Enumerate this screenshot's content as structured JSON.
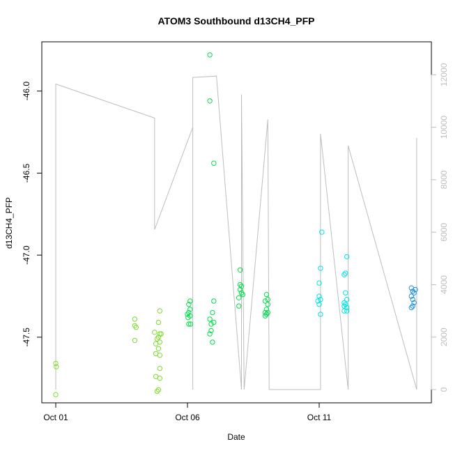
{
  "chart_data": {
    "type": "scatter",
    "title": "ATOM3 Southbound d13CH4_PFP",
    "xlabel": "Date",
    "ylabel": "d13CH4_PFP",
    "xlim": [
      0.0,
      16.0
    ],
    "ylim": [
      -47.9,
      -45.7
    ],
    "x_ticks": [
      {
        "value": 0,
        "label": "Oct 01"
      },
      {
        "value": 5,
        "label": "Oct 06"
      },
      {
        "value": 10,
        "label": "Oct 11"
      }
    ],
    "y_ticks": [
      -47.5,
      -47.0,
      -46.5,
      -46.0
    ],
    "y2_ticks": [
      0,
      2000,
      4000,
      6000,
      8000,
      10000,
      12000
    ],
    "y2_range": [
      -300,
      12500
    ],
    "grid": false,
    "colors": {
      "points_early": "#7fdc2e",
      "points_mid": "#00e04a",
      "points_late": "#00e5e5",
      "points_end": "#1f8fe0",
      "altitude_line": "#bdbdbd"
    },
    "series": [
      {
        "values": [
          {
            "x": 0.0,
            "y": -47.66
          },
          {
            "x": 0.02,
            "y": -47.68
          },
          {
            "x": 0.0,
            "y": -47.85
          },
          {
            "x": 3.0,
            "y": -47.39
          },
          {
            "x": 3.0,
            "y": -47.43
          },
          {
            "x": 3.05,
            "y": -47.44
          },
          {
            "x": 3.0,
            "y": -47.52
          },
          {
            "x": 3.75,
            "y": -47.47
          },
          {
            "x": 3.8,
            "y": -47.54
          },
          {
            "x": 3.85,
            "y": -47.51
          },
          {
            "x": 3.9,
            "y": -47.5
          },
          {
            "x": 3.95,
            "y": -47.48
          },
          {
            "x": 4.0,
            "y": -47.48
          },
          {
            "x": 3.8,
            "y": -47.6
          },
          {
            "x": 3.9,
            "y": -47.57
          },
          {
            "x": 3.95,
            "y": -47.61
          },
          {
            "x": 3.95,
            "y": -47.69
          },
          {
            "x": 3.8,
            "y": -47.74
          },
          {
            "x": 3.95,
            "y": -47.75
          },
          {
            "x": 3.9,
            "y": -47.82
          },
          {
            "x": 3.85,
            "y": -47.83
          },
          {
            "x": 3.95,
            "y": -47.34
          },
          {
            "x": 3.9,
            "y": -47.41
          },
          {
            "x": 3.95,
            "y": -47.53
          }
        ]
      },
      {
        "values": [
          {
            "x": 5.05,
            "y": -47.3
          },
          {
            "x": 5.1,
            "y": -47.33
          },
          {
            "x": 5.05,
            "y": -47.35
          },
          {
            "x": 5.0,
            "y": -47.36
          },
          {
            "x": 5.1,
            "y": -47.37
          },
          {
            "x": 5.05,
            "y": -47.42
          },
          {
            "x": 5.12,
            "y": -47.42
          },
          {
            "x": 5.02,
            "y": -47.38
          },
          {
            "x": 5.1,
            "y": -47.28
          },
          {
            "x": 5.85,
            "y": -45.78
          },
          {
            "x": 5.85,
            "y": -46.06
          },
          {
            "x": 6.0,
            "y": -46.44
          },
          {
            "x": 6.0,
            "y": -47.28
          },
          {
            "x": 5.95,
            "y": -47.35
          },
          {
            "x": 5.85,
            "y": -47.39
          },
          {
            "x": 6.0,
            "y": -47.41
          },
          {
            "x": 5.9,
            "y": -47.46
          },
          {
            "x": 5.85,
            "y": -47.48
          },
          {
            "x": 5.95,
            "y": -47.53
          },
          {
            "x": 5.9,
            "y": -47.42
          }
        ]
      },
      {
        "values": [
          {
            "x": 7.0,
            "y": -47.09
          },
          {
            "x": 7.0,
            "y": -47.18
          },
          {
            "x": 7.05,
            "y": -47.19
          },
          {
            "x": 7.0,
            "y": -47.21
          },
          {
            "x": 7.05,
            "y": -47.23
          },
          {
            "x": 7.1,
            "y": -47.24
          },
          {
            "x": 6.95,
            "y": -47.26
          },
          {
            "x": 6.95,
            "y": -47.31
          },
          {
            "x": 8.0,
            "y": -47.24
          },
          {
            "x": 8.05,
            "y": -47.27
          },
          {
            "x": 7.95,
            "y": -47.28
          },
          {
            "x": 8.05,
            "y": -47.3
          },
          {
            "x": 8.0,
            "y": -47.33
          },
          {
            "x": 7.95,
            "y": -47.35
          },
          {
            "x": 8.0,
            "y": -47.36
          },
          {
            "x": 8.05,
            "y": -47.35
          },
          {
            "x": 7.95,
            "y": -47.37
          }
        ]
      },
      {
        "values": [
          {
            "x": 10.1,
            "y": -46.86
          },
          {
            "x": 10.05,
            "y": -47.08
          },
          {
            "x": 10.0,
            "y": -47.17
          },
          {
            "x": 10.0,
            "y": -47.25
          },
          {
            "x": 9.95,
            "y": -47.28
          },
          {
            "x": 10.05,
            "y": -47.27
          },
          {
            "x": 10.0,
            "y": -47.3
          },
          {
            "x": 10.05,
            "y": -47.36
          },
          {
            "x": 11.0,
            "y": -47.11
          },
          {
            "x": 10.95,
            "y": -47.12
          },
          {
            "x": 11.05,
            "y": -47.01
          },
          {
            "x": 11.0,
            "y": -47.23
          },
          {
            "x": 11.05,
            "y": -47.27
          },
          {
            "x": 10.95,
            "y": -47.29
          },
          {
            "x": 11.0,
            "y": -47.3
          },
          {
            "x": 10.95,
            "y": -47.31
          },
          {
            "x": 11.05,
            "y": -47.32
          },
          {
            "x": 10.95,
            "y": -47.34
          },
          {
            "x": 11.05,
            "y": -47.34
          }
        ]
      },
      {
        "values": [
          {
            "x": 13.5,
            "y": -47.2
          },
          {
            "x": 13.55,
            "y": -47.22
          },
          {
            "x": 13.6,
            "y": -47.23
          },
          {
            "x": 13.65,
            "y": -47.21
          },
          {
            "x": 13.5,
            "y": -47.25
          },
          {
            "x": 13.55,
            "y": -47.27
          },
          {
            "x": 13.6,
            "y": -47.29
          },
          {
            "x": 13.5,
            "y": -47.32
          },
          {
            "x": 13.55,
            "y": -47.31
          }
        ]
      }
    ],
    "altitude": [
      {
        "x": 0.0,
        "y": 0
      },
      {
        "x": 0.0,
        "y": 11650
      },
      {
        "x": 3.75,
        "y": 10350
      },
      {
        "x": 3.75,
        "y": 6400
      },
      {
        "x": 3.75,
        "y": 6100
      },
      {
        "x": 5.2,
        "y": 10000
      },
      {
        "x": 5.2,
        "y": 0
      },
      {
        "x": 5.2,
        "y": 11900
      },
      {
        "x": 6.1,
        "y": 11950
      },
      {
        "x": 7.05,
        "y": 0
      },
      {
        "x": 7.05,
        "y": 11250
      },
      {
        "x": 7.15,
        "y": 0
      },
      {
        "x": 8.05,
        "y": 10300
      },
      {
        "x": 8.1,
        "y": 0
      },
      {
        "x": 10.05,
        "y": 0
      },
      {
        "x": 10.05,
        "y": 9750
      },
      {
        "x": 11.1,
        "y": 0
      },
      {
        "x": 11.1,
        "y": 9300
      },
      {
        "x": 13.7,
        "y": 0
      },
      {
        "x": 13.7,
        "y": 9600
      }
    ]
  }
}
